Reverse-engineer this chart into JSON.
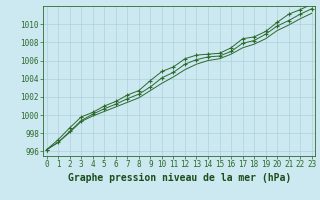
{
  "title": "Graphe pression niveau de la mer (hPa)",
  "x_values": [
    0,
    1,
    2,
    3,
    4,
    5,
    6,
    7,
    8,
    9,
    10,
    11,
    12,
    13,
    14,
    15,
    16,
    17,
    18,
    19,
    20,
    21,
    22,
    23
  ],
  "line1": [
    996.2,
    997.3,
    998.6,
    999.8,
    1000.3,
    1001.0,
    1001.5,
    1002.2,
    1002.7,
    1003.8,
    1004.8,
    1005.3,
    1006.2,
    1006.6,
    1006.7,
    1006.8,
    1007.4,
    1008.4,
    1008.6,
    1009.2,
    1010.2,
    1011.1,
    1011.6,
    1012.2
  ],
  "line2": [
    996.2,
    997.0,
    998.2,
    999.4,
    1000.1,
    1000.7,
    1001.2,
    1001.8,
    1002.3,
    1003.1,
    1004.1,
    1004.7,
    1005.6,
    1006.1,
    1006.4,
    1006.5,
    1007.0,
    1007.9,
    1008.2,
    1008.9,
    1009.8,
    1010.4,
    1011.1,
    1011.7
  ],
  "line3": [
    996.2,
    997.0,
    998.1,
    999.3,
    999.9,
    1000.4,
    1000.9,
    1001.4,
    1001.9,
    1002.7,
    1003.5,
    1004.2,
    1005.0,
    1005.6,
    1006.0,
    1006.2,
    1006.7,
    1007.4,
    1007.8,
    1008.4,
    1009.3,
    1009.9,
    1010.6,
    1011.2
  ],
  "ylim": [
    995.5,
    1012.0
  ],
  "ytick_min": 996,
  "ytick_max": 1010,
  "ytick_step": 2,
  "xticks": [
    0,
    1,
    2,
    3,
    4,
    5,
    6,
    7,
    8,
    9,
    10,
    11,
    12,
    13,
    14,
    15,
    16,
    17,
    18,
    19,
    20,
    21,
    22,
    23
  ],
  "line_color": "#2d6a2d",
  "marker_color": "#2d6a2d",
  "bg_color": "#cce8f0",
  "grid_color": "#a8ccd4",
  "title_color": "#1a4d1a",
  "axis_color": "#2d6a2d",
  "title_fontsize": 7.0,
  "tick_fontsize": 5.5
}
